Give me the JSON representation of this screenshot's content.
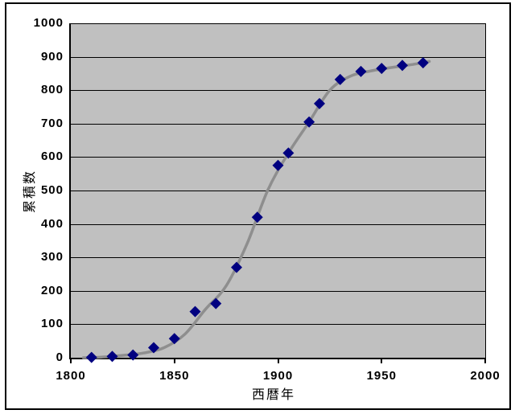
{
  "chart_data": {
    "type": "scatter",
    "title": "",
    "xlabel": "西暦年",
    "ylabel": "累積数",
    "xlim": [
      1800,
      2000
    ],
    "ylim": [
      0,
      1000
    ],
    "x_ticks": [
      1800,
      1850,
      1900,
      1950,
      2000
    ],
    "x_tick_labels": [
      "1800",
      "1850",
      "1900",
      "1950",
      "2000"
    ],
    "y_ticks": [
      0,
      100,
      200,
      300,
      400,
      500,
      600,
      700,
      800,
      900,
      1000
    ],
    "y_tick_labels": [
      "0",
      "100",
      "200",
      "300",
      "400",
      "500",
      "600",
      "700",
      "800",
      "900",
      "1000"
    ],
    "grid": "horizontal-major",
    "legend": "none",
    "colors": {
      "plot_background": "#C0C0C0",
      "gridline": "#000000",
      "axis": "#000000",
      "chart_border": "#000000",
      "marker": "#000080",
      "trendline": "#8E8E8E"
    },
    "series": [
      {
        "name": "累積数",
        "marker": "diamond",
        "marker_color": "#000080",
        "points": [
          [
            1810,
            1
          ],
          [
            1820,
            4
          ],
          [
            1830,
            8
          ],
          [
            1840,
            30
          ],
          [
            1850,
            57
          ],
          [
            1860,
            138
          ],
          [
            1870,
            162
          ],
          [
            1880,
            270
          ],
          [
            1890,
            420
          ],
          [
            1900,
            575
          ],
          [
            1905,
            612
          ],
          [
            1915,
            705
          ],
          [
            1920,
            760
          ],
          [
            1930,
            832
          ],
          [
            1940,
            856
          ],
          [
            1950,
            865
          ],
          [
            1960,
            874
          ],
          [
            1970,
            882
          ]
        ]
      }
    ],
    "trendline": {
      "shape": "smooth-sigmoid",
      "color": "#8E8E8E",
      "width": 3.5,
      "points": [
        [
          1806,
          0
        ],
        [
          1815,
          2
        ],
        [
          1825,
          7
        ],
        [
          1835,
          14
        ],
        [
          1845,
          30
        ],
        [
          1855,
          70
        ],
        [
          1865,
          145
        ],
        [
          1875,
          215
        ],
        [
          1885,
          340
        ],
        [
          1895,
          500
        ],
        [
          1905,
          612
        ],
        [
          1915,
          705
        ],
        [
          1925,
          800
        ],
        [
          1935,
          842
        ],
        [
          1945,
          858
        ],
        [
          1955,
          868
        ],
        [
          1965,
          877
        ],
        [
          1973,
          886
        ]
      ]
    }
  }
}
